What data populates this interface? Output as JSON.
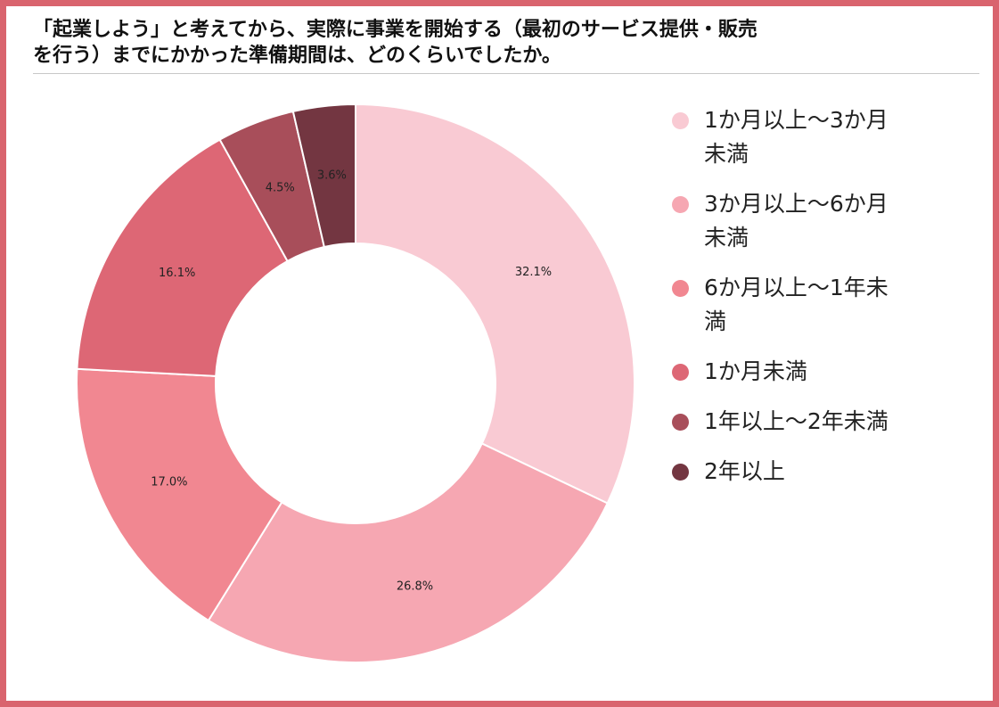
{
  "title": {
    "line1": "「起業しよう」と考えてから、実際に事業を開始する（最初のサービス提供・販売",
    "line2": "を行う）までにかかった準備期間は、どのくらいでしたか。"
  },
  "chart_data": {
    "type": "pie",
    "donut": true,
    "title": "「起業しよう」と考えてから、実際に事業を開始する（最初のサービス提供・販売を行う）までにかかった準備期間は、どのくらいでしたか。",
    "legend_position": "right",
    "slices": [
      {
        "label": "1か月以上～3か月未満",
        "value": 32.1,
        "display": "32.1%",
        "color": "#f9cad3"
      },
      {
        "label": "3か月以上～6か月未満",
        "value": 26.8,
        "display": "26.8%",
        "color": "#f6a7b2"
      },
      {
        "label": "6か月以上～1年未満",
        "value": 17.0,
        "display": "17.0%",
        "color": "#f18791"
      },
      {
        "label": "1か月未満",
        "value": 16.1,
        "display": "16.1%",
        "color": "#dd6775"
      },
      {
        "label": "1年以上～2年未満",
        "value": 4.5,
        "display": "4.5%",
        "color": "#a84e5a"
      },
      {
        "label": "2年以上",
        "value": 3.6,
        "display": "3.6%",
        "color": "#733641"
      }
    ]
  }
}
